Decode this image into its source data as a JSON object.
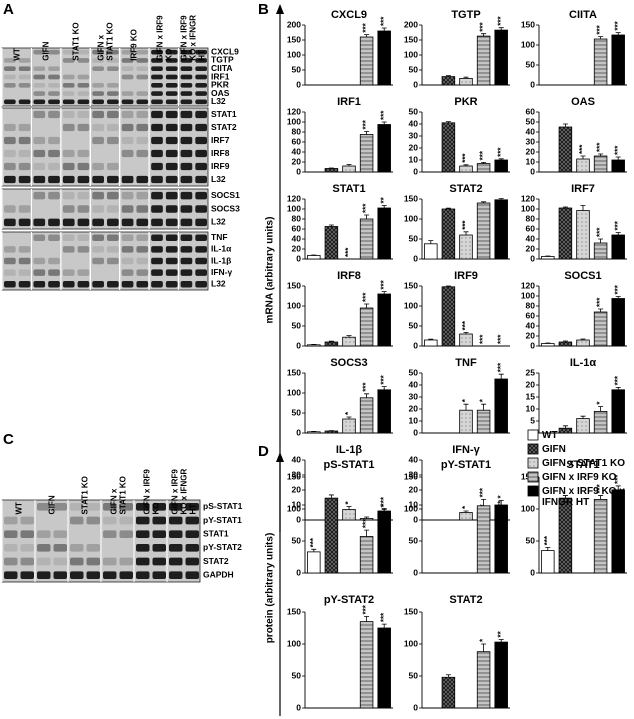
{
  "panels": {
    "A": {
      "letter": "A",
      "columns": [
        "WT",
        "GIFN",
        "STAT1 KO",
        "GIFN x STAT1 KO",
        "IRF9 KO",
        "GIFN x IRF9 KO",
        "GIFN x IRF9 KO x IFNGR HT"
      ],
      "groups": [
        {
          "rows": [
            "CXCL9",
            "TGTP",
            "CIITA",
            "IRF1",
            "PKR",
            "OAS",
            "L32"
          ]
        },
        {
          "rows": [
            "STAT1",
            "STAT2",
            "IRF7",
            "IRF8",
            "IRF9",
            "L32"
          ]
        },
        {
          "rows": [
            "SOCS1",
            "SOCS3",
            "L32"
          ]
        },
        {
          "rows": [
            "TNF",
            "IL-1α",
            "IL-1β",
            "IFN-γ",
            "L32"
          ]
        }
      ]
    },
    "B": {
      "letter": "B",
      "axis_label": "mRNA (arbitrary units)"
    },
    "C": {
      "letter": "C",
      "columns": [
        "WT",
        "GIFN",
        "STAT1 KO",
        "GIFN x STAT1 KO",
        "GIFN x IRF9 KO",
        "GIFN x IRF9 KO x IFNGR HT"
      ],
      "rows": [
        "pS-STAT1",
        "pY-STAT1",
        "STAT1",
        "pY-STAT2",
        "STAT2",
        "GAPDH"
      ]
    },
    "D": {
      "letter": "D",
      "axis_label": "protein (arbitrary units)"
    }
  },
  "legend": {
    "entries": [
      {
        "name": "WT",
        "color": "#ffffff",
        "pattern": "none"
      },
      {
        "name": "GIFN",
        "color": "#6a6a6a",
        "pattern": "crosshatch"
      },
      {
        "name": "GIFN x STAT1 KO",
        "color": "#d6d6d6",
        "pattern": "dots"
      },
      {
        "name": "GIFN x IRF9 KO",
        "color": "#c4c4c4",
        "pattern": "stripes"
      },
      {
        "name": "GIFN x IRF9 KO x IFNGR HT",
        "color": "#000000",
        "pattern": "none"
      }
    ]
  },
  "chart_data": [
    {
      "type": "bar",
      "panel": "B",
      "title": "CXCL9",
      "ylim": [
        0,
        200
      ],
      "yticks": [
        0,
        50,
        100,
        150,
        200
      ],
      "values": [
        0,
        0,
        0,
        160,
        180
      ],
      "errors": [
        0,
        0,
        0,
        8,
        10
      ],
      "significance": [
        null,
        null,
        null,
        "***",
        "***"
      ]
    },
    {
      "type": "bar",
      "panel": "B",
      "title": "TGTP",
      "ylim": [
        0,
        200
      ],
      "yticks": [
        0,
        50,
        100,
        150,
        200
      ],
      "values": [
        0,
        28,
        22,
        163,
        183
      ],
      "errors": [
        0,
        3,
        4,
        8,
        8
      ],
      "significance": [
        null,
        null,
        null,
        "***",
        "***"
      ]
    },
    {
      "type": "bar",
      "panel": "B",
      "title": "CIITA",
      "ylim": [
        0,
        150
      ],
      "yticks": [
        0,
        50,
        100,
        150
      ],
      "values": [
        0,
        0,
        0,
        115,
        125
      ],
      "errors": [
        0,
        0,
        0,
        6,
        6
      ],
      "significance": [
        null,
        null,
        null,
        "***",
        "***"
      ]
    },
    {
      "type": "bar",
      "panel": "B",
      "title": "IRF1",
      "ylim": [
        0,
        120
      ],
      "yticks": [
        0,
        20,
        40,
        60,
        80,
        100,
        120
      ],
      "values": [
        0,
        7,
        12,
        75,
        95
      ],
      "errors": [
        0,
        1,
        3,
        6,
        5
      ],
      "significance": [
        null,
        null,
        null,
        "***",
        "***"
      ]
    },
    {
      "type": "bar",
      "panel": "B",
      "title": "PKR",
      "ylim": [
        0,
        50
      ],
      "yticks": [
        0,
        10,
        20,
        30,
        40,
        50
      ],
      "values": [
        0,
        41,
        5,
        7,
        10
      ],
      "errors": [
        0,
        1,
        1,
        1,
        1
      ],
      "significance": [
        null,
        null,
        "***",
        "***",
        "***"
      ]
    },
    {
      "type": "bar",
      "panel": "B",
      "title": "OAS",
      "ylim": [
        0,
        60
      ],
      "yticks": [
        0,
        10,
        20,
        30,
        40,
        50,
        60
      ],
      "values": [
        0,
        45,
        13,
        16,
        12
      ],
      "errors": [
        0,
        3,
        3,
        2,
        3
      ],
      "significance": [
        null,
        null,
        "***",
        "***",
        "***"
      ]
    },
    {
      "type": "bar",
      "panel": "B",
      "title": "STAT1",
      "ylim": [
        0,
        120
      ],
      "yticks": [
        0,
        20,
        40,
        60,
        80,
        100,
        120
      ],
      "values": [
        7,
        65,
        0,
        80,
        102
      ],
      "errors": [
        1,
        3,
        0,
        8,
        5
      ],
      "significance": [
        null,
        null,
        "***",
        "***",
        "**"
      ]
    },
    {
      "type": "bar",
      "panel": "B",
      "title": "STAT2",
      "ylim": [
        0,
        150
      ],
      "yticks": [
        0,
        50,
        100,
        150
      ],
      "values": [
        38,
        125,
        60,
        140,
        148
      ],
      "errors": [
        8,
        2,
        8,
        3,
        3
      ],
      "significance": [
        null,
        null,
        "***",
        null,
        null
      ]
    },
    {
      "type": "bar",
      "panel": "B",
      "title": "IRF7",
      "ylim": [
        0,
        120
      ],
      "yticks": [
        0,
        20,
        40,
        60,
        80,
        100,
        120
      ],
      "values": [
        5,
        102,
        97,
        32,
        48
      ],
      "errors": [
        1,
        2,
        10,
        8,
        5
      ],
      "significance": [
        null,
        null,
        null,
        "***",
        "***"
      ]
    },
    {
      "type": "bar",
      "panel": "B",
      "title": "IRF8",
      "ylim": [
        0,
        150
      ],
      "yticks": [
        0,
        50,
        100,
        150
      ],
      "values": [
        3,
        10,
        22,
        95,
        130
      ],
      "errors": [
        1,
        2,
        4,
        10,
        6
      ],
      "significance": [
        null,
        null,
        null,
        "***",
        "***"
      ]
    },
    {
      "type": "bar",
      "panel": "B",
      "title": "IRF9",
      "ylim": [
        0,
        150
      ],
      "yticks": [
        0,
        50,
        100,
        150
      ],
      "values": [
        15,
        148,
        30,
        0,
        0
      ],
      "errors": [
        2,
        2,
        4,
        0,
        0
      ],
      "significance": [
        null,
        null,
        "***",
        "***",
        "***"
      ]
    },
    {
      "type": "bar",
      "panel": "B",
      "title": "SOCS1",
      "ylim": [
        0,
        120
      ],
      "yticks": [
        0,
        20,
        40,
        60,
        80,
        100,
        120
      ],
      "values": [
        5,
        8,
        12,
        68,
        95
      ],
      "errors": [
        1,
        2,
        2,
        6,
        4
      ],
      "significance": [
        null,
        null,
        null,
        "***",
        "***"
      ]
    },
    {
      "type": "bar",
      "panel": "B",
      "title": "SOCS3",
      "ylim": [
        0,
        150
      ],
      "yticks": [
        0,
        50,
        100,
        150
      ],
      "values": [
        3,
        5,
        35,
        88,
        108
      ],
      "errors": [
        1,
        1,
        5,
        10,
        8
      ],
      "significance": [
        null,
        null,
        "*",
        "***",
        "***"
      ]
    },
    {
      "type": "bar",
      "panel": "B",
      "title": "TNF",
      "ylim": [
        0,
        50
      ],
      "yticks": [
        0,
        10,
        20,
        30,
        40,
        50
      ],
      "values": [
        0,
        0,
        19,
        19,
        45
      ],
      "errors": [
        0,
        0,
        5,
        5,
        4
      ],
      "significance": [
        null,
        null,
        "*",
        "*",
        "***"
      ]
    },
    {
      "type": "bar",
      "panel": "B",
      "title": "IL-1α",
      "ylim": [
        0,
        25
      ],
      "yticks": [
        0,
        5,
        10,
        15,
        20,
        25
      ],
      "values": [
        0,
        2,
        6,
        9,
        18
      ],
      "errors": [
        0,
        1,
        1,
        2,
        1
      ],
      "significance": [
        null,
        null,
        null,
        "*",
        "***"
      ]
    },
    {
      "type": "bar",
      "panel": "B",
      "title": "IL-1β",
      "ylim": [
        0,
        40
      ],
      "yticks": [
        0,
        10,
        20,
        30,
        40
      ],
      "values": [
        0,
        0,
        7,
        1,
        6
      ],
      "errors": [
        0,
        0,
        2,
        1,
        1
      ],
      "significance": [
        null,
        null,
        "*",
        null,
        "*"
      ]
    },
    {
      "type": "bar",
      "panel": "B",
      "title": "IFN-γ",
      "ylim": [
        0,
        40
      ],
      "yticks": [
        0,
        10,
        20,
        30,
        40
      ],
      "values": [
        0,
        0,
        5,
        5,
        10
      ],
      "errors": [
        0,
        0,
        1,
        2,
        3
      ],
      "significance": [
        null,
        null,
        "*",
        "*",
        "*"
      ]
    },
    {
      "type": "bar",
      "panel": "D",
      "title": "pS-STAT1",
      "ylim": [
        0,
        150
      ],
      "yticks": [
        0,
        50,
        100,
        150
      ],
      "values": [
        33,
        117,
        0,
        57,
        93
      ],
      "errors": [
        4,
        5,
        0,
        10,
        8
      ],
      "significance": [
        "***",
        null,
        null,
        "***",
        "***"
      ]
    },
    {
      "type": "bar",
      "panel": "D",
      "title": "pY-STAT1",
      "ylim": [
        0,
        150
      ],
      "yticks": [
        0,
        50,
        100,
        150
      ],
      "values": [
        0,
        0,
        0,
        105,
        90
      ],
      "errors": [
        0,
        0,
        0,
        10,
        10
      ],
      "significance": [
        null,
        null,
        null,
        "***",
        "**"
      ]
    },
    {
      "type": "bar",
      "panel": "D",
      "title": "STAT1",
      "ylim": [
        0,
        150
      ],
      "yticks": [
        0,
        50,
        100,
        150
      ],
      "values": [
        35,
        117,
        0,
        115,
        130
      ],
      "errors": [
        5,
        4,
        0,
        6,
        6
      ],
      "significance": [
        "***",
        null,
        null,
        "***",
        "***"
      ]
    },
    {
      "type": "bar",
      "panel": "D",
      "title": "pY-STAT2",
      "ylim": [
        0,
        150
      ],
      "yticks": [
        0,
        50,
        100,
        150
      ],
      "values": [
        0,
        0,
        0,
        135,
        125
      ],
      "errors": [
        0,
        0,
        0,
        8,
        6
      ],
      "significance": [
        null,
        null,
        null,
        "***",
        "***"
      ]
    },
    {
      "type": "bar",
      "panel": "D",
      "title": "STAT2",
      "ylim": [
        0,
        150
      ],
      "yticks": [
        0,
        50,
        100,
        150
      ],
      "values": [
        0,
        48,
        0,
        88,
        103
      ],
      "errors": [
        0,
        4,
        0,
        12,
        4
      ],
      "significance": [
        null,
        null,
        null,
        "*",
        "**"
      ]
    }
  ]
}
